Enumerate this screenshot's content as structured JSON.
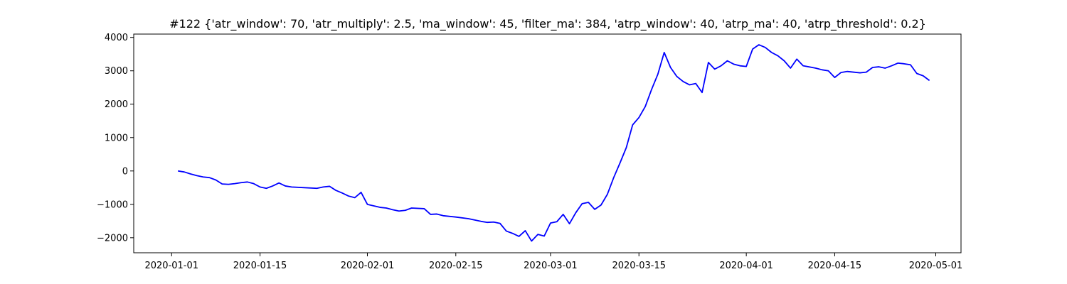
{
  "chart_data": {
    "type": "line",
    "title": "#122 {'atr_window': 70, 'atr_multiply': 2.5, 'ma_window': 45, 'filter_ma': 384, 'atrp_window': 40, 'atrp_ma': 40, 'atrp_threshold': 0.2}",
    "xlabel": "",
    "ylabel": "",
    "xlim": [
      "2019-12-26",
      "2020-05-05"
    ],
    "ylim": [
      -2450,
      4100
    ],
    "x_ticks": [
      "2020-01-01",
      "2020-01-15",
      "2020-02-01",
      "2020-02-15",
      "2020-03-01",
      "2020-03-15",
      "2020-04-01",
      "2020-04-15",
      "2020-05-01"
    ],
    "y_ticks": [
      -2000,
      -1000,
      0,
      1000,
      2000,
      3000,
      4000
    ],
    "y_tick_labels": [
      "−2000",
      "−1000",
      "0",
      "1000",
      "2000",
      "3000",
      "4000"
    ],
    "grid": false,
    "series": [
      {
        "color": "#0000ff",
        "points": [
          [
            "2020-01-02",
            0
          ],
          [
            "2020-01-03",
            -30
          ],
          [
            "2020-01-04",
            -90
          ],
          [
            "2020-01-05",
            -140
          ],
          [
            "2020-01-06",
            -180
          ],
          [
            "2020-01-07",
            -200
          ],
          [
            "2020-01-08",
            -270
          ],
          [
            "2020-01-09",
            -390
          ],
          [
            "2020-01-10",
            -400
          ],
          [
            "2020-01-11",
            -380
          ],
          [
            "2020-01-12",
            -350
          ],
          [
            "2020-01-13",
            -330
          ],
          [
            "2020-01-14",
            -380
          ],
          [
            "2020-01-15",
            -480
          ],
          [
            "2020-01-16",
            -520
          ],
          [
            "2020-01-17",
            -450
          ],
          [
            "2020-01-18",
            -360
          ],
          [
            "2020-01-19",
            -450
          ],
          [
            "2020-01-20",
            -480
          ],
          [
            "2020-01-22",
            -500
          ],
          [
            "2020-01-24",
            -520
          ],
          [
            "2020-01-25",
            -480
          ],
          [
            "2020-01-26",
            -460
          ],
          [
            "2020-01-27",
            -580
          ],
          [
            "2020-01-28",
            -660
          ],
          [
            "2020-01-29",
            -750
          ],
          [
            "2020-01-30",
            -800
          ],
          [
            "2020-01-31",
            -640
          ],
          [
            "2020-02-01",
            -1000
          ],
          [
            "2020-02-03",
            -1090
          ],
          [
            "2020-02-04",
            -1110
          ],
          [
            "2020-02-05",
            -1160
          ],
          [
            "2020-02-06",
            -1200
          ],
          [
            "2020-02-07",
            -1180
          ],
          [
            "2020-02-08",
            -1110
          ],
          [
            "2020-02-10",
            -1130
          ],
          [
            "2020-02-11",
            -1300
          ],
          [
            "2020-02-12",
            -1290
          ],
          [
            "2020-02-13",
            -1340
          ],
          [
            "2020-02-15",
            -1380
          ],
          [
            "2020-02-17",
            -1430
          ],
          [
            "2020-02-19",
            -1510
          ],
          [
            "2020-02-20",
            -1540
          ],
          [
            "2020-02-21",
            -1530
          ],
          [
            "2020-02-22",
            -1570
          ],
          [
            "2020-02-23",
            -1800
          ],
          [
            "2020-02-24",
            -1870
          ],
          [
            "2020-02-25",
            -1960
          ],
          [
            "2020-02-26",
            -1790
          ],
          [
            "2020-02-27",
            -2100
          ],
          [
            "2020-02-28",
            -1900
          ],
          [
            "2020-02-29",
            -1950
          ],
          [
            "2020-03-01",
            -1560
          ],
          [
            "2020-03-02",
            -1520
          ],
          [
            "2020-03-03",
            -1300
          ],
          [
            "2020-03-04",
            -1580
          ],
          [
            "2020-03-05",
            -1250
          ],
          [
            "2020-03-06",
            -980
          ],
          [
            "2020-03-07",
            -940
          ],
          [
            "2020-03-08",
            -1150
          ],
          [
            "2020-03-09",
            -1020
          ],
          [
            "2020-03-10",
            -700
          ],
          [
            "2020-03-11",
            -200
          ],
          [
            "2020-03-12",
            240
          ],
          [
            "2020-03-13",
            700
          ],
          [
            "2020-03-14",
            1380
          ],
          [
            "2020-03-15",
            1600
          ],
          [
            "2020-03-16",
            1930
          ],
          [
            "2020-03-17",
            2440
          ],
          [
            "2020-03-18",
            2900
          ],
          [
            "2020-03-19",
            3550
          ],
          [
            "2020-03-20",
            3100
          ],
          [
            "2020-03-21",
            2830
          ],
          [
            "2020-03-22",
            2680
          ],
          [
            "2020-03-23",
            2580
          ],
          [
            "2020-03-24",
            2620
          ],
          [
            "2020-03-25",
            2350
          ],
          [
            "2020-03-26",
            3250
          ],
          [
            "2020-03-27",
            3050
          ],
          [
            "2020-03-28",
            3150
          ],
          [
            "2020-03-29",
            3300
          ],
          [
            "2020-03-30",
            3200
          ],
          [
            "2020-03-31",
            3150
          ],
          [
            "2020-04-01",
            3130
          ],
          [
            "2020-04-02",
            3650
          ],
          [
            "2020-04-03",
            3780
          ],
          [
            "2020-04-04",
            3700
          ],
          [
            "2020-04-05",
            3550
          ],
          [
            "2020-04-06",
            3450
          ],
          [
            "2020-04-07",
            3300
          ],
          [
            "2020-04-08",
            3080
          ],
          [
            "2020-04-09",
            3350
          ],
          [
            "2020-04-10",
            3150
          ],
          [
            "2020-04-12",
            3080
          ],
          [
            "2020-04-13",
            3030
          ],
          [
            "2020-04-14",
            3000
          ],
          [
            "2020-04-15",
            2800
          ],
          [
            "2020-04-16",
            2950
          ],
          [
            "2020-04-17",
            2980
          ],
          [
            "2020-04-19",
            2940
          ],
          [
            "2020-04-20",
            2960
          ],
          [
            "2020-04-21",
            3100
          ],
          [
            "2020-04-22",
            3120
          ],
          [
            "2020-04-23",
            3080
          ],
          [
            "2020-04-24",
            3150
          ],
          [
            "2020-04-25",
            3230
          ],
          [
            "2020-04-26",
            3210
          ],
          [
            "2020-04-27",
            3180
          ],
          [
            "2020-04-28",
            2920
          ],
          [
            "2020-04-29",
            2850
          ],
          [
            "2020-04-30",
            2710
          ]
        ]
      }
    ]
  }
}
